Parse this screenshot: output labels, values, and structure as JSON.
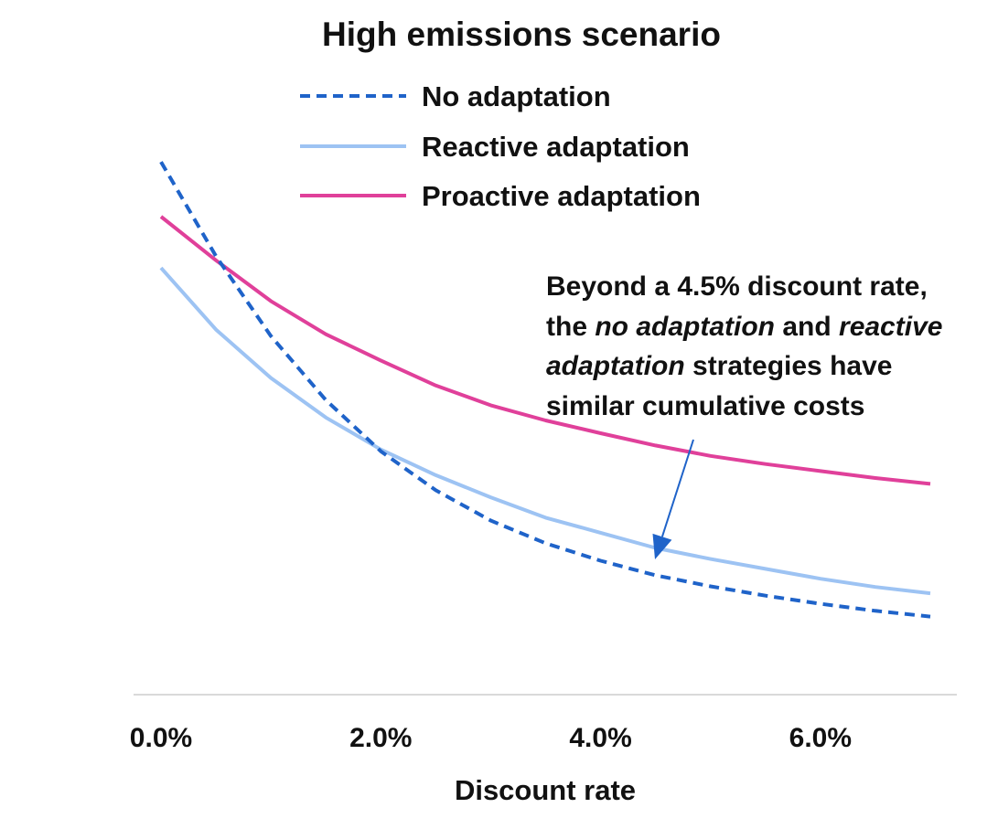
{
  "chart_data": {
    "type": "line",
    "title": "High emissions scenario",
    "xlabel": "Discount rate",
    "ylabel": "",
    "x": [
      0.0,
      0.5,
      1.0,
      1.5,
      2.0,
      2.5,
      3.0,
      3.5,
      4.0,
      4.5,
      5.0,
      5.5,
      6.0,
      6.5,
      7.0
    ],
    "x_ticks": [
      0,
      2,
      4,
      6
    ],
    "x_tick_labels": [
      "0.0%",
      "2.0%",
      "4.0%",
      "6.0%"
    ],
    "xlim": [
      0,
      7
    ],
    "ylim": [
      0,
      100
    ],
    "grid": false,
    "legend_position": "top",
    "series": [
      {
        "name": "No adaptation",
        "style": "dashed",
        "color": "#1f63c9",
        "values": [
          91.5,
          75.3,
          61.6,
          50.6,
          41.8,
          35.1,
          29.9,
          26.0,
          23.0,
          20.5,
          18.6,
          17.0,
          15.6,
          14.4,
          13.4
        ]
      },
      {
        "name": "Reactive adaptation",
        "style": "solid",
        "color": "#9dc3f3",
        "values": [
          73.3,
          62.7,
          54.4,
          47.6,
          42.1,
          37.7,
          33.9,
          30.4,
          27.8,
          25.2,
          23.3,
          21.6,
          19.9,
          18.5,
          17.4
        ]
      },
      {
        "name": "Proactive adaptation",
        "style": "solid",
        "color": "#e0409a",
        "values": [
          82.1,
          74.6,
          67.6,
          61.9,
          57.4,
          53.1,
          49.7,
          47.1,
          44.9,
          42.8,
          41.0,
          39.6,
          38.4,
          37.2,
          36.2
        ]
      }
    ],
    "annotation": {
      "lines": [
        [
          {
            "text": "Beyond a 4.5% discount rate,",
            "italic": false
          }
        ],
        [
          {
            "text": "the ",
            "italic": false
          },
          {
            "text": "no adaptation",
            "italic": true
          },
          {
            "text": " and ",
            "italic": false
          },
          {
            "text": "reactive",
            "italic": true
          }
        ],
        [
          {
            "text": "adaptation",
            "italic": true
          },
          {
            "text": " strategies have",
            "italic": false
          }
        ],
        [
          {
            "text": "similar cumulative costs",
            "italic": false
          }
        ]
      ],
      "arrow_color": "#1f63c9",
      "arrow_target": {
        "x": 4.6,
        "y": 24.5
      }
    }
  }
}
